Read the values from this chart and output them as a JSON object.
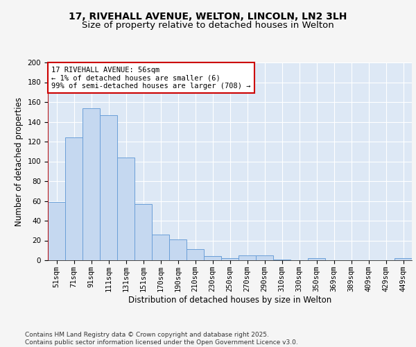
{
  "title_line1": "17, RIVEHALL AVENUE, WELTON, LINCOLN, LN2 3LH",
  "title_line2": "Size of property relative to detached houses in Welton",
  "xlabel": "Distribution of detached houses by size in Welton",
  "ylabel": "Number of detached properties",
  "categories": [
    "51sqm",
    "71sqm",
    "91sqm",
    "111sqm",
    "131sqm",
    "151sqm",
    "170sqm",
    "190sqm",
    "210sqm",
    "230sqm",
    "250sqm",
    "270sqm",
    "290sqm",
    "310sqm",
    "330sqm",
    "350sqm",
    "369sqm",
    "389sqm",
    "409sqm",
    "429sqm",
    "449sqm"
  ],
  "values": [
    59,
    124,
    154,
    147,
    104,
    57,
    26,
    21,
    11,
    4,
    2,
    5,
    5,
    1,
    0,
    2,
    0,
    0,
    0,
    0,
    2
  ],
  "bar_color": "#c5d8f0",
  "bar_edge_color": "#6a9fd8",
  "vline_color": "#cc0000",
  "annotation_text": "17 RIVEHALL AVENUE: 56sqm\n← 1% of detached houses are smaller (6)\n99% of semi-detached houses are larger (708) →",
  "annotation_box_color": "#ffffff",
  "annotation_box_edge": "#cc0000",
  "ylim": [
    0,
    200
  ],
  "yticks": [
    0,
    20,
    40,
    60,
    80,
    100,
    120,
    140,
    160,
    180,
    200
  ],
  "background_color": "#dde8f5",
  "fig_bg_color": "#f5f5f5",
  "footer_text": "Contains HM Land Registry data © Crown copyright and database right 2025.\nContains public sector information licensed under the Open Government Licence v3.0.",
  "title_fontsize": 10,
  "subtitle_fontsize": 9.5,
  "axis_label_fontsize": 8.5,
  "tick_fontsize": 7.5,
  "annotation_fontsize": 7.5,
  "footer_fontsize": 6.5
}
